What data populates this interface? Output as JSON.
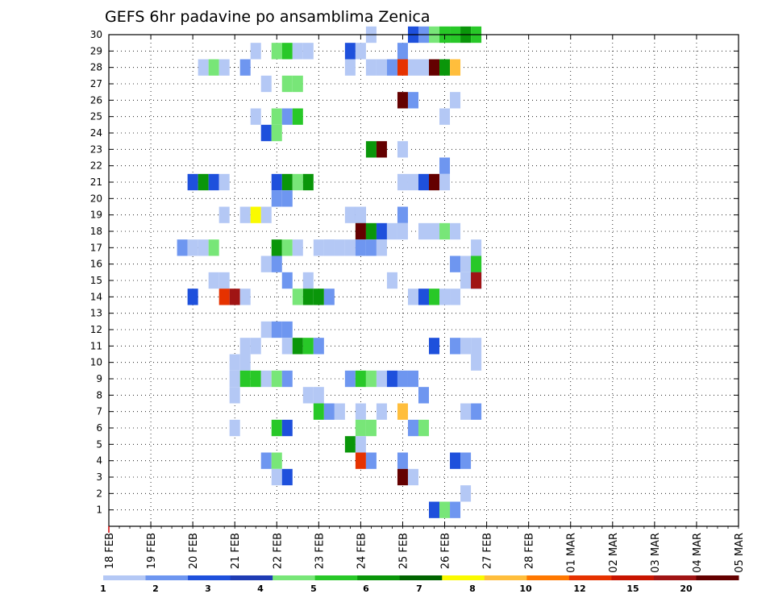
{
  "chart_data": {
    "type": "heatmap",
    "title": "GEFS 6hr padavine po ansamblima Zenica",
    "y_ticks": [
      "1",
      "2",
      "3",
      "4",
      "5",
      "6",
      "7",
      "8",
      "9",
      "10",
      "11",
      "12",
      "13",
      "14",
      "15",
      "16",
      "17",
      "18",
      "19",
      "20",
      "21",
      "22",
      "23",
      "24",
      "25",
      "26",
      "27",
      "28",
      "29",
      "30"
    ],
    "x_ticks": [
      "18 FEB",
      "19 FEB",
      "20 FEB",
      "21 FEB",
      "22 FEB",
      "23 FEB",
      "24 FEB",
      "25 FEB",
      "26 FEB",
      "27 FEB",
      "28 FEB",
      "01 MAR",
      "02 MAR",
      "03 MAR",
      "04 MAR",
      "05 MAR"
    ],
    "x_range": [
      "18 FEB",
      "05 MAR"
    ],
    "y_range": [
      0,
      30
    ],
    "grid": true,
    "colorbar": {
      "labels": [
        "1",
        "2",
        "3",
        "4",
        "5",
        "6",
        "7",
        "8",
        "10",
        "12",
        "15",
        "20"
      ],
      "colors": [
        "#b4c8f5",
        "#6e96f0",
        "#1e50dc",
        "#1e3cb4",
        "#78e678",
        "#28c828",
        "#0a960a",
        "#006400",
        "#fafa00",
        "#ffbe3c",
        "#ff7800",
        "#e63200",
        "#c81400",
        "#a01414",
        "#640000"
      ]
    },
    "cells": [
      [
        24.25,
        30,
        1
      ],
      [
        25.25,
        30,
        3
      ],
      [
        25.5,
        30,
        2
      ],
      [
        25.75,
        30,
        5
      ],
      [
        26.0,
        30,
        6
      ],
      [
        26.25,
        30,
        6
      ],
      [
        26.5,
        30,
        7
      ],
      [
        26.75,
        30,
        6
      ],
      [
        23.75,
        29,
        3
      ],
      [
        24.0,
        29,
        1
      ],
      [
        21.5,
        29,
        1
      ],
      [
        22.0,
        29,
        5
      ],
      [
        22.25,
        29,
        6
      ],
      [
        22.5,
        29,
        1
      ],
      [
        22.75,
        29,
        1
      ],
      [
        25.0,
        29,
        2
      ],
      [
        23.75,
        28,
        1
      ],
      [
        25.5,
        28,
        1
      ],
      [
        20.25,
        28,
        1
      ],
      [
        20.5,
        28,
        5
      ],
      [
        20.75,
        28,
        1
      ],
      [
        21.25,
        28,
        2
      ],
      [
        24.25,
        28,
        1
      ],
      [
        24.5,
        28,
        1
      ],
      [
        24.75,
        28,
        2
      ],
      [
        25.0,
        28,
        12
      ],
      [
        25.25,
        28,
        1
      ],
      [
        25.75,
        28,
        15
      ],
      [
        26.0,
        28,
        7
      ],
      [
        26.25,
        28,
        10
      ],
      [
        21.75,
        27,
        1
      ],
      [
        22.25,
        27,
        5
      ],
      [
        22.5,
        27,
        5
      ],
      [
        25.0,
        26,
        15
      ],
      [
        25.25,
        26,
        2
      ],
      [
        26.25,
        26,
        1
      ],
      [
        21.5,
        25,
        1
      ],
      [
        22.0,
        25,
        5
      ],
      [
        22.25,
        25,
        2
      ],
      [
        22.5,
        25,
        6
      ],
      [
        26.0,
        25,
        1
      ],
      [
        21.75,
        24,
        3
      ],
      [
        22.0,
        24,
        5
      ],
      [
        24.25,
        23,
        7
      ],
      [
        24.5,
        23,
        15
      ],
      [
        25.0,
        23,
        1
      ],
      [
        26.0,
        22,
        2
      ],
      [
        20.0,
        21,
        3
      ],
      [
        20.25,
        21,
        7
      ],
      [
        20.5,
        21,
        3
      ],
      [
        20.75,
        21,
        1
      ],
      [
        22.0,
        21,
        3
      ],
      [
        22.25,
        21,
        7
      ],
      [
        22.5,
        21,
        5
      ],
      [
        22.75,
        21,
        7
      ],
      [
        25.0,
        21,
        1
      ],
      [
        25.25,
        21,
        1
      ],
      [
        25.5,
        21,
        3
      ],
      [
        25.75,
        21,
        15
      ],
      [
        26.0,
        21,
        1
      ],
      [
        22.0,
        20,
        2
      ],
      [
        22.25,
        20,
        2
      ],
      [
        23.75,
        19,
        1
      ],
      [
        24.0,
        19,
        2
      ],
      [
        20.75,
        19,
        1
      ],
      [
        21.25,
        19,
        1
      ],
      [
        21.5,
        19,
        9
      ],
      [
        21.75,
        19,
        1
      ],
      [
        24.0,
        19,
        1
      ],
      [
        25.0,
        19,
        2
      ],
      [
        24.0,
        18,
        5
      ],
      [
        24.0,
        18,
        15
      ],
      [
        24.25,
        18,
        7
      ],
      [
        24.5,
        18,
        3
      ],
      [
        24.75,
        18,
        1
      ],
      [
        25.0,
        18,
        1
      ],
      [
        25.5,
        18,
        1
      ],
      [
        25.75,
        18,
        1
      ],
      [
        26.0,
        18,
        5
      ],
      [
        26.25,
        18,
        1
      ],
      [
        23.0,
        17,
        1
      ],
      [
        23.25,
        17,
        1
      ],
      [
        19.75,
        17,
        2
      ],
      [
        20.0,
        17,
        1
      ],
      [
        20.25,
        17,
        1
      ],
      [
        20.5,
        17,
        5
      ],
      [
        22.0,
        17,
        7
      ],
      [
        22.25,
        17,
        5
      ],
      [
        22.5,
        17,
        1
      ],
      [
        23.25,
        17,
        1
      ],
      [
        23.5,
        17,
        1
      ],
      [
        23.75,
        17,
        1
      ],
      [
        24.0,
        17,
        2
      ],
      [
        24.25,
        17,
        2
      ],
      [
        24.5,
        17,
        1
      ],
      [
        26.75,
        17,
        1
      ],
      [
        21.75,
        16,
        1
      ],
      [
        22.0,
        16,
        2
      ],
      [
        26.25,
        16,
        2
      ],
      [
        26.5,
        16,
        1
      ],
      [
        26.75,
        16,
        2
      ],
      [
        26.75,
        16,
        6
      ],
      [
        20.5,
        15,
        1
      ],
      [
        20.75,
        15,
        1
      ],
      [
        22.25,
        15,
        2
      ],
      [
        22.75,
        15,
        1
      ],
      [
        24.75,
        15,
        1
      ],
      [
        26.5,
        15,
        1
      ],
      [
        26.75,
        15,
        3
      ],
      [
        26.75,
        15,
        14
      ],
      [
        20.0,
        14,
        3
      ],
      [
        20.75,
        14,
        12
      ],
      [
        21.0,
        14,
        14
      ],
      [
        21.25,
        14,
        1
      ],
      [
        22.5,
        14,
        5
      ],
      [
        22.75,
        14,
        7
      ],
      [
        23.0,
        14,
        7
      ],
      [
        23.25,
        14,
        2
      ],
      [
        25.25,
        14,
        1
      ],
      [
        25.5,
        14,
        3
      ],
      [
        25.75,
        14,
        6
      ],
      [
        26.0,
        14,
        1
      ],
      [
        26.25,
        14,
        1
      ],
      [
        21.75,
        12,
        1
      ],
      [
        22.0,
        12,
        2
      ],
      [
        22.25,
        12,
        2
      ],
      [
        21.25,
        11,
        1
      ],
      [
        21.5,
        11,
        1
      ],
      [
        22.25,
        11,
        1
      ],
      [
        22.5,
        11,
        7
      ],
      [
        22.75,
        11,
        6
      ],
      [
        23.0,
        11,
        2
      ],
      [
        25.75,
        11,
        3
      ],
      [
        26.25,
        11,
        2
      ],
      [
        26.5,
        11,
        1
      ],
      [
        26.75,
        11,
        1
      ],
      [
        21.0,
        10,
        1
      ],
      [
        21.25,
        10,
        1
      ],
      [
        26.75,
        10,
        1
      ],
      [
        21.0,
        9,
        1
      ],
      [
        21.25,
        9,
        6
      ],
      [
        21.5,
        9,
        6
      ],
      [
        21.75,
        9,
        1
      ],
      [
        22.0,
        9,
        5
      ],
      [
        22.25,
        9,
        2
      ],
      [
        23.75,
        9,
        2
      ],
      [
        24.0,
        9,
        6
      ],
      [
        24.25,
        9,
        5
      ],
      [
        24.5,
        9,
        1
      ],
      [
        24.75,
        9,
        3
      ],
      [
        25.0,
        9,
        2
      ],
      [
        25.25,
        9,
        2
      ],
      [
        21.0,
        8,
        1
      ],
      [
        22.75,
        8,
        1
      ],
      [
        23.0,
        8,
        1
      ],
      [
        25.5,
        8,
        2
      ],
      [
        23.0,
        7,
        6
      ],
      [
        23.25,
        7,
        2
      ],
      [
        23.5,
        7,
        1
      ],
      [
        24.0,
        7,
        1
      ],
      [
        24.5,
        7,
        1
      ],
      [
        25.0,
        7,
        10
      ],
      [
        26.5,
        7,
        1
      ],
      [
        26.75,
        7,
        2
      ],
      [
        21.0,
        6,
        1
      ],
      [
        22.0,
        6,
        6
      ],
      [
        22.25,
        6,
        3
      ],
      [
        24.0,
        6,
        5
      ],
      [
        24.25,
        6,
        5
      ],
      [
        25.25,
        6,
        2
      ],
      [
        25.5,
        6,
        5
      ],
      [
        23.75,
        5,
        7
      ],
      [
        24.0,
        5,
        1
      ],
      [
        21.75,
        4,
        2
      ],
      [
        22.0,
        4,
        5
      ],
      [
        24.0,
        4,
        12
      ],
      [
        24.25,
        4,
        2
      ],
      [
        25.0,
        4,
        2
      ],
      [
        26.25,
        4,
        3
      ],
      [
        26.5,
        4,
        2
      ],
      [
        22.0,
        3,
        1
      ],
      [
        22.25,
        3,
        3
      ],
      [
        25.0,
        3,
        20
      ],
      [
        25.25,
        3,
        1
      ],
      [
        26.5,
        2,
        1
      ],
      [
        25.75,
        1,
        3
      ],
      [
        26.0,
        1,
        5
      ],
      [
        26.25,
        1,
        2
      ]
    ]
  }
}
